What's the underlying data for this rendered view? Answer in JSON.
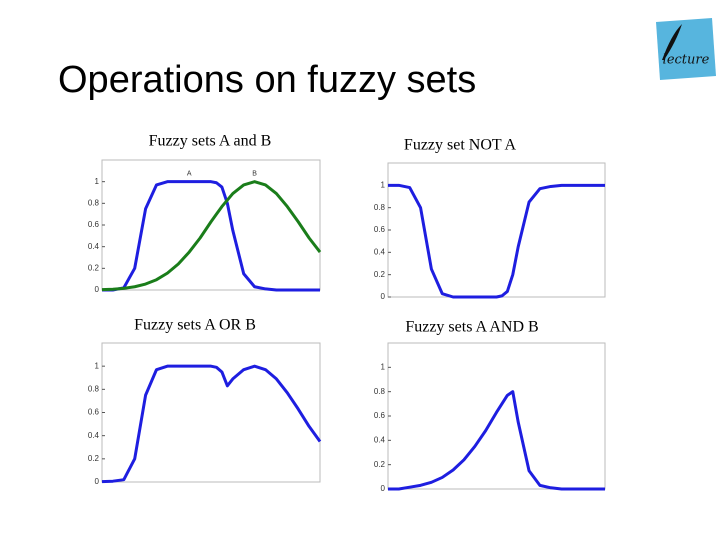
{
  "title": "Operations on fuzzy sets",
  "logo": "lecture",
  "chart_data": [
    {
      "type": "line",
      "title": "Fuzzy sets A and B",
      "x": [
        0,
        0.5,
        1,
        1.5,
        2,
        2.5,
        3,
        3.5,
        4,
        4.5,
        5,
        5.25,
        5.5,
        5.75,
        6,
        6.5,
        7,
        7.5,
        8,
        8.5,
        9,
        9.5,
        10
      ],
      "series": [
        {
          "name": "A",
          "color": "#1e1ee0",
          "values": [
            0,
            0,
            0.02,
            0.2,
            0.75,
            0.97,
            1,
            1,
            1,
            1,
            1,
            0.99,
            0.95,
            0.8,
            0.55,
            0.15,
            0.03,
            0.01,
            0,
            0,
            0,
            0,
            0
          ]
        },
        {
          "name": "B",
          "color": "#1a7d1a",
          "values": [
            0.003,
            0.007,
            0.015,
            0.03,
            0.055,
            0.095,
            0.156,
            0.24,
            0.35,
            0.48,
            0.63,
            0.7,
            0.77,
            0.83,
            0.89,
            0.97,
            1,
            0.97,
            0.89,
            0.77,
            0.63,
            0.48,
            0.35
          ]
        }
      ],
      "xlim": [
        0,
        10
      ],
      "ylim": [
        0,
        1.2
      ],
      "yticks": [
        0,
        0.2,
        0.4,
        0.6,
        0.8,
        1
      ]
    },
    {
      "type": "line",
      "title": "Fuzzy set NOT A",
      "x": [
        0,
        0.5,
        1,
        1.5,
        2,
        2.5,
        3,
        3.5,
        4,
        4.5,
        5,
        5.25,
        5.5,
        5.75,
        6,
        6.5,
        7,
        7.5,
        8,
        8.5,
        9,
        9.5,
        10
      ],
      "series": [
        {
          "color": "#1e1ee0",
          "values": [
            1,
            1,
            0.98,
            0.8,
            0.25,
            0.03,
            0,
            0,
            0,
            0,
            0,
            0.01,
            0.05,
            0.2,
            0.45,
            0.85,
            0.97,
            0.99,
            1,
            1,
            1,
            1,
            1
          ]
        }
      ],
      "xlim": [
        0,
        10
      ],
      "ylim": [
        0,
        1.2
      ],
      "yticks": [
        0,
        0.2,
        0.4,
        0.6,
        0.8,
        1
      ]
    },
    {
      "type": "line",
      "title": "Fuzzy sets A OR B",
      "x": [
        0,
        0.5,
        1,
        1.5,
        2,
        2.5,
        3,
        3.5,
        4,
        4.5,
        5,
        5.25,
        5.5,
        5.75,
        6,
        6.5,
        7,
        7.5,
        8,
        8.5,
        9,
        9.5,
        10
      ],
      "series": [
        {
          "color": "#1e1ee0",
          "values": [
            0.003,
            0.007,
            0.02,
            0.2,
            0.75,
            0.97,
            1,
            1,
            1,
            1,
            1,
            0.99,
            0.95,
            0.83,
            0.89,
            0.97,
            1,
            0.97,
            0.89,
            0.77,
            0.63,
            0.48,
            0.35
          ]
        }
      ],
      "xlim": [
        0,
        10
      ],
      "ylim": [
        0,
        1.2
      ],
      "yticks": [
        0,
        0.2,
        0.4,
        0.6,
        0.8,
        1
      ]
    },
    {
      "type": "line",
      "title": "Fuzzy sets A AND B",
      "x": [
        0,
        0.5,
        1,
        1.5,
        2,
        2.5,
        3,
        3.5,
        4,
        4.5,
        5,
        5.25,
        5.5,
        5.75,
        6,
        6.5,
        7,
        7.5,
        8,
        8.5,
        9,
        9.5,
        10
      ],
      "series": [
        {
          "color": "#1e1ee0",
          "values": [
            0,
            0,
            0.015,
            0.03,
            0.055,
            0.095,
            0.156,
            0.24,
            0.35,
            0.48,
            0.63,
            0.7,
            0.77,
            0.8,
            0.55,
            0.15,
            0.03,
            0.01,
            0,
            0,
            0,
            0,
            0
          ]
        }
      ],
      "xlim": [
        0,
        10
      ],
      "ylim": [
        0,
        1.2
      ],
      "yticks": [
        0,
        0.2,
        0.4,
        0.6,
        0.8,
        1
      ]
    }
  ]
}
